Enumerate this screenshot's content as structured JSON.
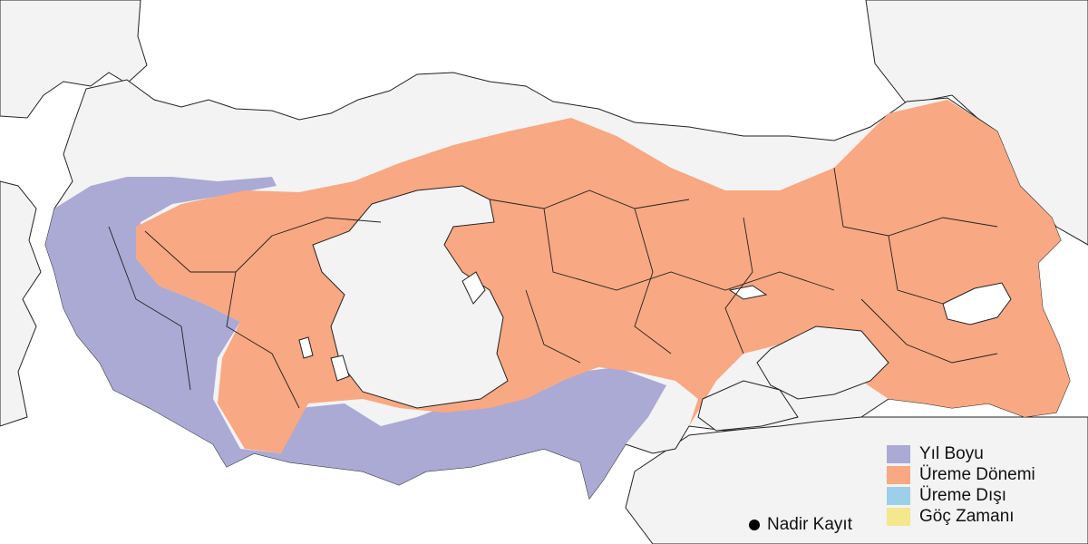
{
  "legend": {
    "items": [
      {
        "label": "Yıl Boyu",
        "color": "#aaaad5"
      },
      {
        "label": "Üreme Dönemi",
        "color": "#f8a882"
      },
      {
        "label": "Üreme Dışı",
        "color": "#9dcfe8"
      },
      {
        "label": "Göç Zamanı",
        "color": "#f4e78e"
      }
    ],
    "rare_record_label": "Nadir Kayıt",
    "rare_record_color": "#000000"
  },
  "colors": {
    "land": "#f3f3f3",
    "sea": "#ffffff",
    "border": "#222222"
  }
}
